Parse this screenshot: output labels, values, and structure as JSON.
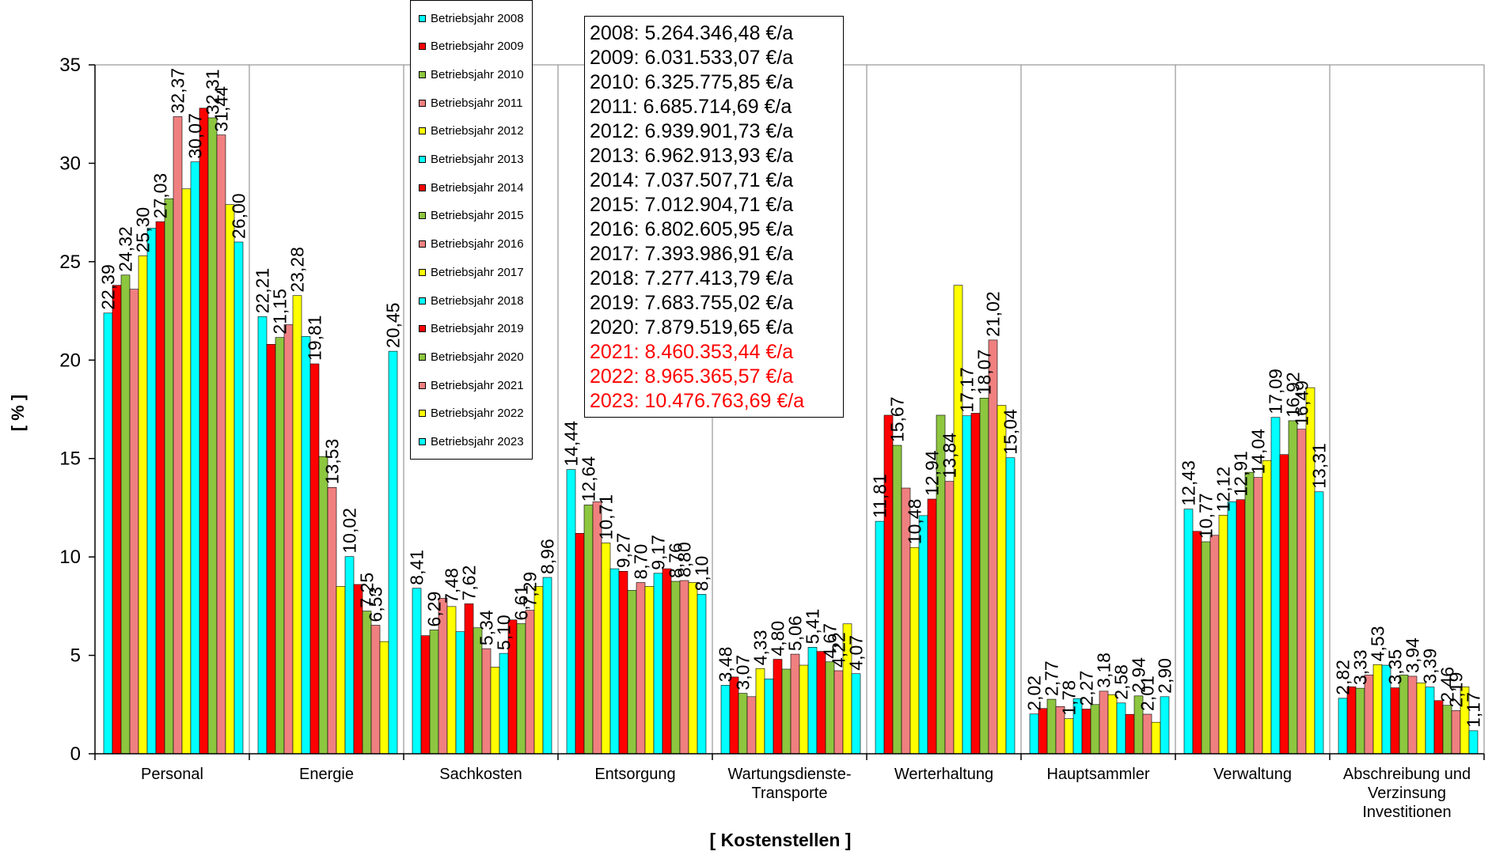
{
  "chart_data": {
    "type": "bar",
    "xlabel": "[ Kostenstellen ]",
    "ylabel": "[ % ]",
    "ylim": [
      0,
      35
    ],
    "yticks": [
      0,
      5,
      10,
      15,
      20,
      25,
      30,
      35
    ],
    "grid": "vertical category separators",
    "legend_position": "top, inside plot area",
    "categories": [
      "Personal",
      "Energie",
      "Sachkosten",
      "Entsorgung",
      "Wartungsdienste-\nTransporte",
      "Werterhaltung",
      "Hauptsammler",
      "Verwaltung",
      "Abschreibung und\nVerzinsung\nInvestitionen"
    ],
    "series": [
      {
        "name": "Betriebsjahr 2008",
        "color": "#00FFFF",
        "values": [
          22.39,
          22.21,
          8.41,
          14.44,
          3.48,
          11.81,
          2.02,
          12.43,
          2.82
        ],
        "labels": [
          "22,39",
          "22,21",
          "8,41",
          "14,44",
          "3,48",
          "11,81",
          "2,02",
          "12,43",
          "2,82"
        ]
      },
      {
        "name": "Betriebsjahr 2009",
        "color": "#FF0000",
        "values": [
          23.8,
          20.8,
          6.0,
          11.2,
          3.9,
          17.2,
          2.3,
          11.3,
          3.4
        ],
        "labels": []
      },
      {
        "name": "Betriebsjahr 2010",
        "color": "#8DC63F",
        "values": [
          24.32,
          21.15,
          6.29,
          12.64,
          3.07,
          15.67,
          2.77,
          10.77,
          3.33
        ],
        "labels": [
          "24,32",
          "21,15",
          "6,29",
          "12,64",
          "3,07",
          "15,67",
          "2,77",
          "10,77",
          "3,33"
        ]
      },
      {
        "name": "Betriebsjahr 2011",
        "color": "#F08080",
        "values": [
          23.6,
          21.8,
          7.9,
          12.8,
          2.9,
          13.5,
          2.4,
          11.1,
          4.0
        ],
        "labels": []
      },
      {
        "name": "Betriebsjahr 2012",
        "color": "#FFFF00",
        "values": [
          25.3,
          23.28,
          7.48,
          10.71,
          4.33,
          10.48,
          1.78,
          12.12,
          4.53
        ],
        "labels": [
          "25,30",
          "23,28",
          "7,48",
          "10,71",
          "4,33",
          "10,48",
          "1,78",
          "12,12",
          "4,53"
        ]
      },
      {
        "name": "Betriebsjahr 2013",
        "color": "#00FFFF",
        "values": [
          26.7,
          21.2,
          6.2,
          9.4,
          3.8,
          12.1,
          2.8,
          12.8,
          4.5
        ],
        "labels": []
      },
      {
        "name": "Betriebsjahr 2014",
        "color": "#FF0000",
        "values": [
          27.03,
          19.81,
          7.62,
          9.27,
          4.8,
          12.94,
          2.27,
          12.91,
          3.35
        ],
        "labels": [
          "27,03",
          "19,81",
          "7,62",
          "9,27",
          "4,80",
          "12,94",
          "2,27",
          "12,91",
          "3,35"
        ]
      },
      {
        "name": "Betriebsjahr 2015",
        "color": "#8DC63F",
        "values": [
          28.2,
          15.1,
          6.4,
          8.3,
          4.3,
          17.2,
          2.5,
          14.3,
          4.0
        ],
        "labels": []
      },
      {
        "name": "Betriebsjahr 2016",
        "color": "#F08080",
        "values": [
          32.37,
          13.53,
          5.34,
          8.7,
          5.06,
          13.84,
          3.18,
          14.04,
          3.94
        ],
        "labels": [
          "32,37",
          "13,53",
          "5,34",
          "8,70",
          "5,06",
          "13,84",
          "3,18",
          "14,04",
          "3,94"
        ]
      },
      {
        "name": "Betriebsjahr 2017",
        "color": "#FFFF00",
        "values": [
          28.7,
          8.5,
          4.4,
          8.5,
          4.5,
          23.8,
          3.0,
          14.9,
          3.6
        ],
        "labels": []
      },
      {
        "name": "Betriebsjahr 2018",
        "color": "#00FFFF",
        "values": [
          30.07,
          10.02,
          5.1,
          9.17,
          5.41,
          17.17,
          2.58,
          17.09,
          3.39
        ],
        "labels": [
          "30,07",
          "10,02",
          "5,10",
          "9,17",
          "5,41",
          "17,17",
          "2,58",
          "17,09",
          "3,39"
        ]
      },
      {
        "name": "Betriebsjahr 2019",
        "color": "#FF0000",
        "values": [
          32.8,
          8.6,
          6.8,
          9.4,
          5.2,
          17.3,
          2.0,
          15.2,
          2.7
        ],
        "labels": []
      },
      {
        "name": "Betriebsjahr 2020",
        "color": "#8DC63F",
        "values": [
          32.31,
          7.25,
          6.61,
          8.76,
          4.67,
          18.07,
          2.94,
          16.92,
          2.46
        ],
        "labels": [
          "32,31",
          "7,25",
          "6,61",
          "8,76",
          "4,67",
          "18,07",
          "2,94",
          "16,92",
          "2,46"
        ]
      },
      {
        "name": "Betriebsjahr 2021",
        "color": "#F08080",
        "values": [
          31.44,
          6.53,
          7.29,
          8.8,
          4.22,
          21.02,
          2.01,
          16.49,
          2.19
        ],
        "labels": [
          "31,44",
          "6,53",
          "7,29",
          "8,80",
          "4,22",
          "21,02",
          "2,01",
          "16,49",
          "2,19"
        ]
      },
      {
        "name": "Betriebsjahr 2022",
        "color": "#FFFF00",
        "values": [
          27.9,
          5.7,
          8.5,
          8.7,
          6.6,
          17.7,
          1.6,
          18.6,
          3.4
        ],
        "labels": []
      },
      {
        "name": "Betriebsjahr 2023",
        "color": "#00FFFF",
        "values": [
          26.0,
          20.45,
          8.96,
          8.1,
          4.07,
          15.04,
          2.9,
          13.31,
          1.17
        ],
        "labels": [
          "26,00",
          "20,45",
          "8,96",
          "8,10",
          "4,07",
          "15,04",
          "2,90",
          "13,31",
          "1,17"
        ]
      }
    ]
  },
  "cost_box": {
    "lines": [
      {
        "text": "2008: 5.264.346,48 €/a",
        "color": "#000000"
      },
      {
        "text": "2009: 6.031.533,07 €/a",
        "color": "#000000"
      },
      {
        "text": "2010: 6.325.775,85 €/a",
        "color": "#000000"
      },
      {
        "text": "2011: 6.685.714,69 €/a",
        "color": "#000000"
      },
      {
        "text": "2012: 6.939.901,73 €/a",
        "color": "#000000"
      },
      {
        "text": "2013: 6.962.913,93 €/a",
        "color": "#000000"
      },
      {
        "text": "2014: 7.037.507,71 €/a",
        "color": "#000000"
      },
      {
        "text": "2015: 7.012.904,71 €/a",
        "color": "#000000"
      },
      {
        "text": "2016: 6.802.605,95 €/a",
        "color": "#000000"
      },
      {
        "text": "2017: 7.393.986,91 €/a",
        "color": "#000000"
      },
      {
        "text": "2018: 7.277.413,79 €/a",
        "color": "#000000"
      },
      {
        "text": "2019: 7.683.755,02 €/a",
        "color": "#000000"
      },
      {
        "text": "2020: 7.879.519,65 €/a",
        "color": "#000000"
      },
      {
        "text": "2021: 8.460.353,44 €/a",
        "color": "#FF0000"
      },
      {
        "text": "2022: 8.965.365,57 €/a",
        "color": "#FF0000"
      },
      {
        "text": "2023: 10.476.763,69 €/a",
        "color": "#FF0000"
      }
    ]
  }
}
